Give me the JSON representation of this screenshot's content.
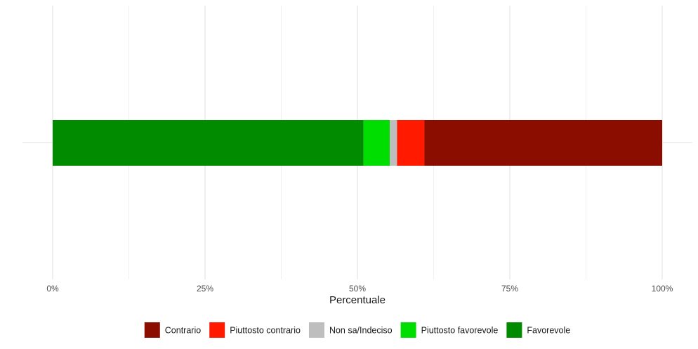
{
  "chart_data": {
    "type": "bar",
    "orientation": "horizontal",
    "stacked": true,
    "title": "",
    "xlabel": "Percentuale",
    "ylabel": "",
    "xlim": [
      0,
      1
    ],
    "x_ticks": [
      0,
      0.25,
      0.5,
      0.75,
      1
    ],
    "x_tick_labels": [
      "0%",
      "25%",
      "50%",
      "75%",
      "100%"
    ],
    "grid": true,
    "legend_position": "bottom",
    "series": [
      {
        "name": "Favorevole",
        "value": 0.51,
        "color": "#008B00"
      },
      {
        "name": "Piuttosto favorevole",
        "value": 0.043,
        "color": "#00DD00"
      },
      {
        "name": "Non sa/Indeciso",
        "value": 0.012,
        "color": "#BEBEBE"
      },
      {
        "name": "Piuttosto contrario",
        "value": 0.045,
        "color": "#FF1A00"
      },
      {
        "name": "Contrario",
        "value": 0.39,
        "color": "#8B0D00"
      }
    ],
    "legend_order": [
      "Contrario",
      "Piuttosto contrario",
      "Non sa/Indeciso",
      "Piuttosto favorevole",
      "Favorevole"
    ]
  }
}
